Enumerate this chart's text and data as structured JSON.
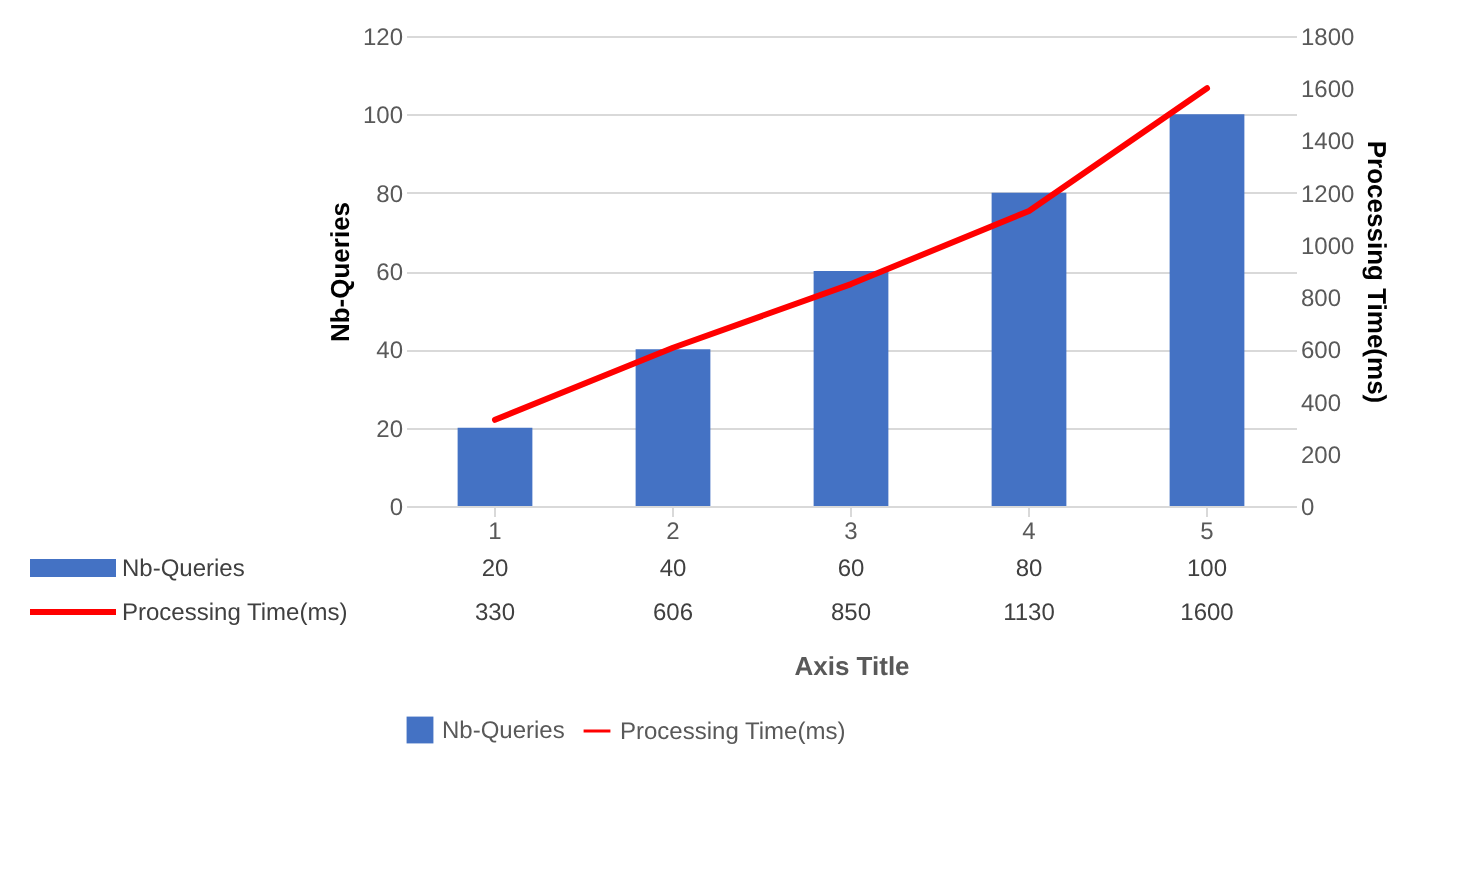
{
  "chart_data": {
    "type": "bar",
    "xlabel": "Axis Title",
    "ylabel": "Nb-Queries",
    "y2label": "Processing Time(ms)",
    "categories": [
      "1",
      "2",
      "3",
      "4",
      "5"
    ],
    "series": [
      {
        "name": "Nb-Queries",
        "type": "bar",
        "color": "#4472c4",
        "values": [
          20,
          40,
          60,
          80,
          100
        ]
      },
      {
        "name": "Processing Time(ms)",
        "type": "line",
        "axis": "y2",
        "color": "#ff0000",
        "values": [
          330,
          606,
          850,
          1130,
          1600
        ]
      }
    ],
    "ylim": [
      0,
      120
    ],
    "yticks": [
      0,
      20,
      40,
      60,
      80,
      100,
      120
    ],
    "y2lim": [
      0,
      1800
    ],
    "y2ticks": [
      0,
      200,
      400,
      600,
      800,
      1000,
      1200,
      1400,
      1600,
      1800
    ],
    "grid": "y",
    "legend": "bottom",
    "data_labels": true
  }
}
